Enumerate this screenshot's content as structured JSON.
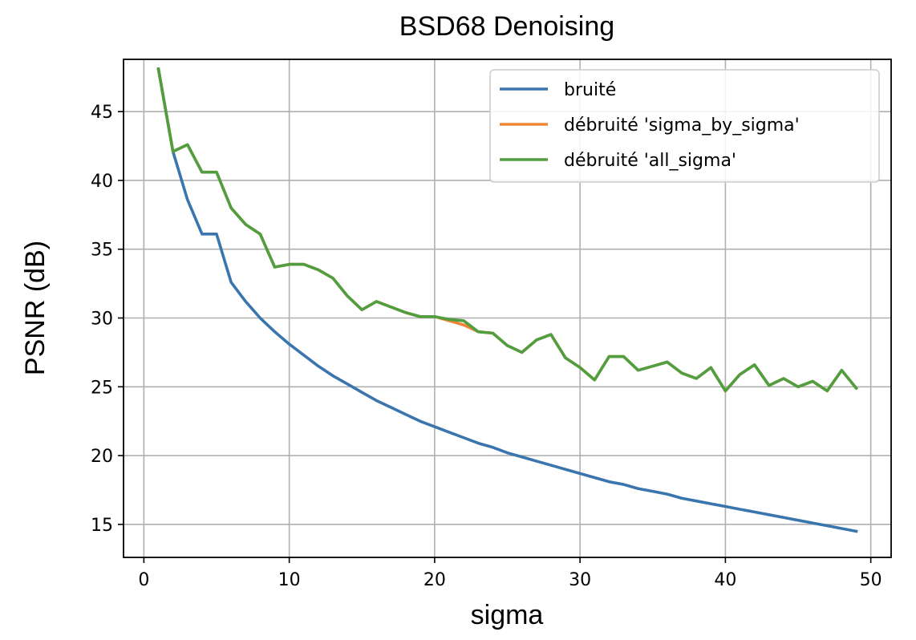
{
  "chart_data": {
    "type": "line",
    "title": "BSD68 Denoising",
    "xlabel": "sigma",
    "ylabel": "PSNR (dB)",
    "xlim": [
      -1.4,
      51.4
    ],
    "ylim": [
      12.6,
      48.8
    ],
    "xticks": [
      0,
      10,
      20,
      30,
      40,
      50
    ],
    "yticks": [
      15,
      20,
      25,
      30,
      35,
      40,
      45
    ],
    "grid": true,
    "legend_position": "top-right",
    "x": [
      1,
      2,
      3,
      4,
      5,
      6,
      7,
      8,
      9,
      10,
      11,
      12,
      13,
      14,
      15,
      16,
      17,
      18,
      19,
      20,
      21,
      22,
      23,
      24,
      25,
      26,
      27,
      28,
      29,
      30,
      31,
      32,
      33,
      34,
      35,
      36,
      37,
      38,
      39,
      40,
      41,
      42,
      43,
      44,
      45,
      46,
      47,
      48,
      49
    ],
    "series": [
      {
        "name": "bruité",
        "color": "#3a75ae",
        "values": [
          48.1,
          42.1,
          38.6,
          36.1,
          36.1,
          32.6,
          31.2,
          30.0,
          29.0,
          28.1,
          27.3,
          26.5,
          25.8,
          25.2,
          24.6,
          24.0,
          23.5,
          23.0,
          22.5,
          22.1,
          21.7,
          21.3,
          20.9,
          20.6,
          20.2,
          19.9,
          19.6,
          19.3,
          19.0,
          18.7,
          18.4,
          18.1,
          17.9,
          17.6,
          17.4,
          17.2,
          16.9,
          16.7,
          16.5,
          16.3,
          16.1,
          15.9,
          15.7,
          15.5,
          15.3,
          15.1,
          14.9,
          14.7,
          14.5
        ]
      },
      {
        "name": "débruité 'sigma_by_sigma'",
        "color": "#ef8535",
        "values": [
          48.1,
          42.1,
          42.6,
          40.6,
          40.6,
          38.0,
          36.8,
          36.1,
          33.7,
          33.9,
          33.9,
          33.5,
          32.9,
          31.6,
          30.6,
          31.2,
          30.8,
          30.4,
          30.1,
          30.1,
          29.8,
          29.5,
          29.0,
          28.9,
          28.0,
          27.5,
          28.4,
          28.8,
          27.1,
          26.4,
          25.5,
          27.2,
          27.2,
          26.2,
          26.5,
          26.8,
          26.0,
          25.6,
          26.4,
          24.7,
          25.9,
          26.6,
          25.1,
          25.6,
          25.0,
          25.4,
          24.7,
          26.2,
          24.9
        ]
      },
      {
        "name": "débruité 'all_sigma'",
        "color": "#509e3f",
        "values": [
          48.1,
          42.1,
          42.6,
          40.6,
          40.6,
          38.0,
          36.8,
          36.1,
          33.7,
          33.9,
          33.9,
          33.5,
          32.9,
          31.6,
          30.6,
          31.2,
          30.8,
          30.4,
          30.1,
          30.1,
          29.9,
          29.8,
          29.0,
          28.9,
          28.0,
          27.5,
          28.4,
          28.8,
          27.1,
          26.4,
          25.5,
          27.2,
          27.2,
          26.2,
          26.5,
          26.8,
          26.0,
          25.6,
          26.4,
          24.7,
          25.9,
          26.6,
          25.1,
          25.6,
          25.0,
          25.4,
          24.7,
          26.2,
          24.9
        ]
      }
    ]
  }
}
